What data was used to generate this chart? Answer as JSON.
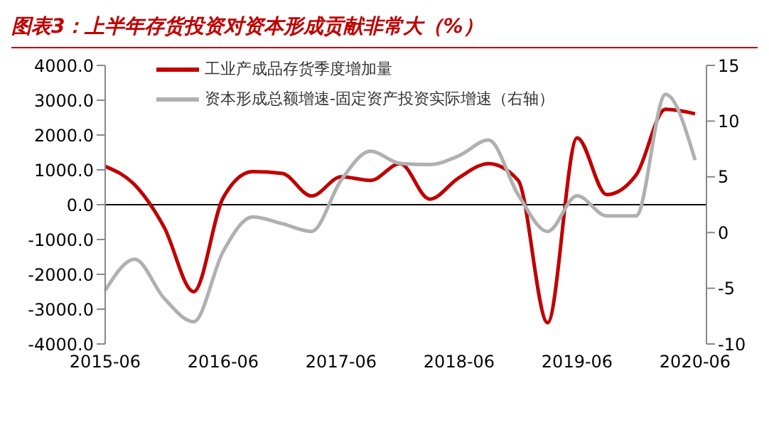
{
  "chart_data": {
    "type": "line",
    "title": "图表3：上半年存货投资对资本形成贡献非常大（%）",
    "categories": [
      "2015-06",
      null,
      null,
      null,
      "2016-06",
      null,
      null,
      null,
      "2017-06",
      null,
      null,
      null,
      "2018-06",
      null,
      null,
      null,
      "2019-06",
      null,
      null,
      null,
      "2020-06"
    ],
    "series": [
      {
        "name": "工业产成品存货季度增加量",
        "color": "#c00000",
        "values": [
          1100,
          570,
          -650,
          -2500,
          200,
          950,
          900,
          250,
          800,
          700,
          1180,
          160,
          780,
          1180,
          700,
          -3390,
          1920,
          290,
          850,
          2740,
          2610
        ]
      },
      {
        "name": "资本形成总额增速-固定资产投资实际增速（右轴）",
        "color": "#b0b0b0",
        "axis": "y2",
        "values": [
          -5.2,
          -2.4,
          -5.9,
          -8.0,
          -1.7,
          1.4,
          0.8,
          0.1,
          4.7,
          7.3,
          6.2,
          6.1,
          6.9,
          8.3,
          3.4,
          0.1,
          3.3,
          1.5,
          1.5,
          12.4,
          6.5
        ]
      }
    ],
    "ylim": [
      -4000,
      4000
    ],
    "yticks": [
      {
        "value": -4000,
        "label": "-4000.0"
      },
      {
        "value": -3000,
        "label": "-3000.0"
      },
      {
        "value": -2000,
        "label": "-2000.0"
      },
      {
        "value": -1000,
        "label": "-1000.0"
      },
      {
        "value": 0,
        "label": "0.0"
      },
      {
        "value": 1000,
        "label": "1000.0"
      },
      {
        "value": 2000,
        "label": "2000.0"
      },
      {
        "value": 3000,
        "label": "3000.0"
      },
      {
        "value": 4000,
        "label": "4000.0"
      }
    ],
    "y2lim": [
      -10,
      15
    ],
    "y2ticks": [
      -10,
      -5,
      0,
      5,
      10,
      15
    ],
    "ref_lines": [
      {
        "axis": "y",
        "value": 0,
        "color": "#000000"
      }
    ],
    "legend": "top",
    "grid": false,
    "marker": "none",
    "line_style": "solid"
  }
}
